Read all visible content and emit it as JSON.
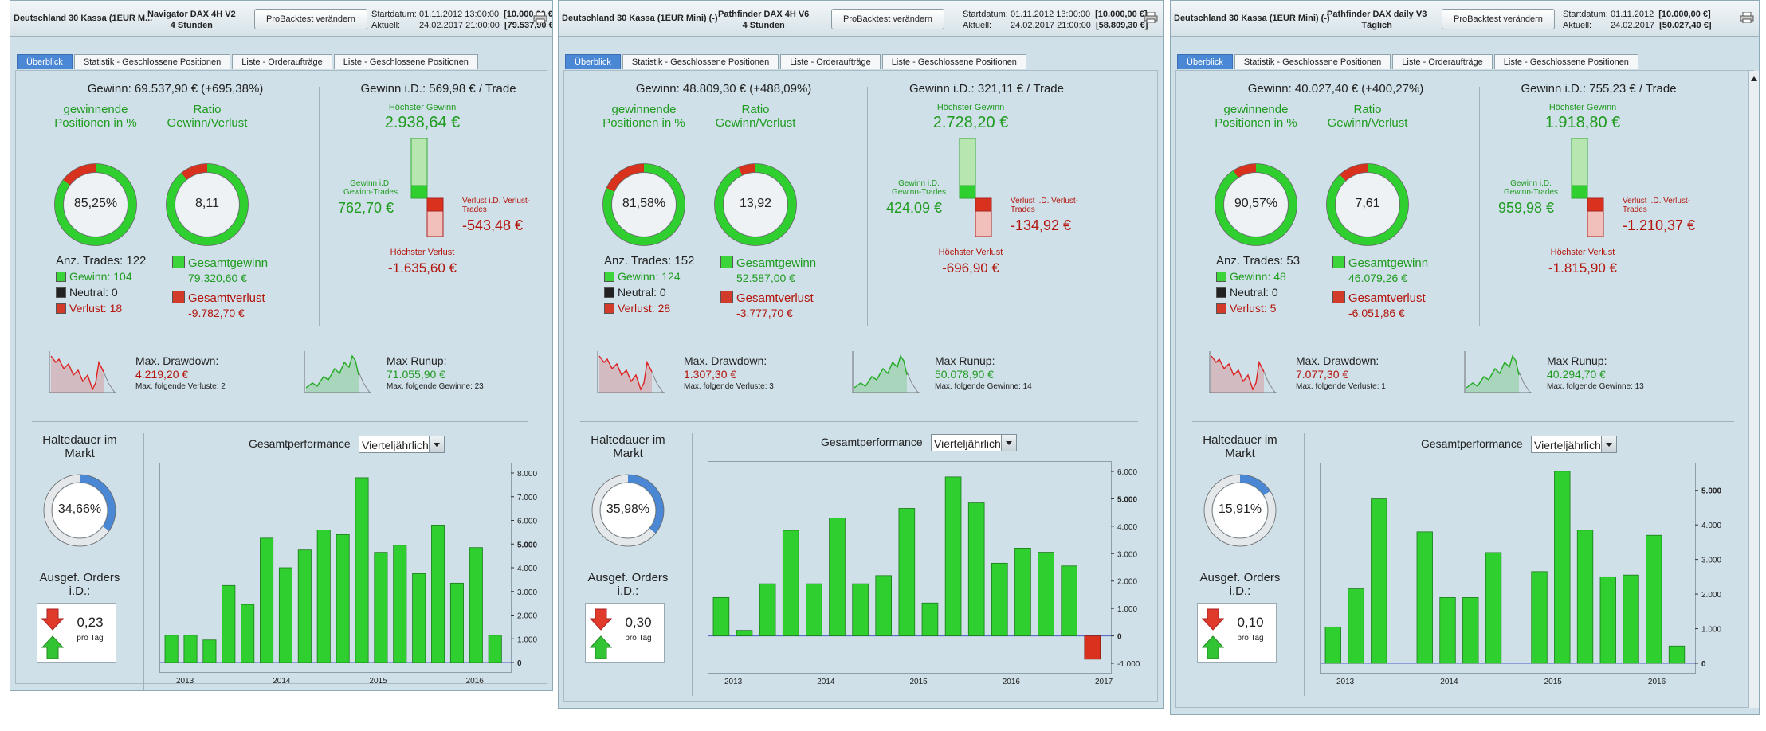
{
  "panels": [
    {
      "instrument": "Deutschland 30 Kassa (1EUR M...",
      "system": [
        "Navigator DAX 4H V2",
        "4 Stunden"
      ],
      "button": "ProBacktest verändern",
      "start_label": "Startdatum:",
      "start_value": "01.11.2012 13:00:00",
      "start_bracket": "[10.000,00 €]",
      "now_label": "Aktuell:",
      "now_value": "24.02.2017 21:00:00",
      "now_bracket": "[79.537,90 €]",
      "tabs": [
        "Überblick",
        "Statistik - Geschlossene Positionen",
        "Liste - Orderaufträge",
        "Liste - Geschlossene Positionen"
      ],
      "gewinn": "Gewinn: 69.537,90 € (+695,38%)",
      "win_pct_label": "gewinnende Positionen in %",
      "win_pct": "85,25%",
      "win_frac": 0.8525,
      "ratio_label": "Ratio Gewinn/Verlust",
      "ratio": "8,11",
      "ratio_frac": 0.89,
      "trades": "Anz. Trades: 122",
      "wins": "Gewinn: 104",
      "neutral": "Neutral: 0",
      "losses": "Verlust: 18",
      "total_gain_label": "Gesamtgewinn",
      "total_gain": "79.320,60 €",
      "total_loss_label": "Gesamtverlust",
      "total_loss": "-9.782,70 €",
      "gewinn_id": "Gewinn i.D.: 569,98 € / Trade",
      "max_gain_label": "Höchster Gewinn",
      "max_gain": "2.938,64 €",
      "avg_win_label": "Gewinn i.D. Gewinn-Trades",
      "avg_win": "762,70 €",
      "avg_loss_label": "Verlust i.D. Verlust-Trades",
      "avg_loss": "-543,48 €",
      "max_loss_label": "Höchster Verlust",
      "max_loss": "-1.635,60 €",
      "dd_label": "Max. Drawdown:",
      "dd": "4.219,20 €",
      "dd_sub": "Max. folgende Verluste: 2",
      "ru_label": "Max Runup:",
      "ru": "71.055,90 €",
      "ru_sub": "Max. folgende Gewinne: 23",
      "hold_label": "Haltedauer im Markt",
      "hold": "34,66%",
      "hold_frac": 0.3466,
      "perf_label": "Gesamtperformance",
      "perf_select": "Vierteljährlich",
      "orders_label": "Ausgef. Orders i.D.:",
      "orders": "0,23",
      "orders_unit": "pro Tag"
    },
    {
      "instrument": "Deutschland 30 Kassa (1EUR Mini) (-)",
      "system": [
        "Pathfinder DAX 4H V6",
        "4 Stunden"
      ],
      "button": "ProBacktest verändern",
      "start_label": "Startdatum:",
      "start_value": "01.11.2012 13:00:00",
      "start_bracket": "[10.000,00 €]",
      "now_label": "Aktuell:",
      "now_value": "24.02.2017 21:00:00",
      "now_bracket": "[58.809,30 €]",
      "tabs": [
        "Überblick",
        "Statistik - Geschlossene Positionen",
        "Liste - Orderaufträge",
        "Liste - Geschlossene Positionen"
      ],
      "gewinn": "Gewinn: 48.809,30 € (+488,09%)",
      "win_pct_label": "gewinnende Positionen in %",
      "win_pct": "81,58%",
      "win_frac": 0.8158,
      "ratio_label": "Ratio Gewinn/Verlust",
      "ratio": "13,92",
      "ratio_frac": 0.93,
      "trades": "Anz. Trades: 152",
      "wins": "Gewinn: 124",
      "neutral": "Neutral: 0",
      "losses": "Verlust: 28",
      "total_gain_label": "Gesamtgewinn",
      "total_gain": "52.587,00 €",
      "total_loss_label": "Gesamtverlust",
      "total_loss": "-3.777,70 €",
      "gewinn_id": "Gewinn i.D.: 321,11 € / Trade",
      "max_gain_label": "Höchster Gewinn",
      "max_gain": "2.728,20 €",
      "avg_win_label": "Gewinn i.D. Gewinn-Trades",
      "avg_win": "424,09 €",
      "avg_loss_label": "Verlust i.D. Verlust-Trades",
      "avg_loss": "-134,92 €",
      "max_loss_label": "Höchster Verlust",
      "max_loss": "-696,90 €",
      "dd_label": "Max. Drawdown:",
      "dd": "1.307,30 €",
      "dd_sub": "Max. folgende Verluste: 3",
      "ru_label": "Max Runup:",
      "ru": "50.078,90 €",
      "ru_sub": "Max. folgende Gewinne: 14",
      "hold_label": "Haltedauer im Markt",
      "hold": "35,98%",
      "hold_frac": 0.3598,
      "perf_label": "Gesamtperformance",
      "perf_select": "Vierteljährlich",
      "orders_label": "Ausgef. Orders i.D.:",
      "orders": "0,30",
      "orders_unit": "pro Tag"
    },
    {
      "instrument": "Deutschland 30 Kassa (1EUR Mini) (-)",
      "system": [
        "Pathfinder DAX daily V3",
        "Täglich"
      ],
      "button": "ProBacktest verändern",
      "start_label": "Startdatum:",
      "start_value": "01.11.2012",
      "start_bracket": "[10.000,00 €]",
      "now_label": "Aktuell:",
      "now_value": "24.02.2017",
      "now_bracket": "[50.027,40 €]",
      "tabs": [
        "Überblick",
        "Statistik - Geschlossene Positionen",
        "Liste - Orderaufträge",
        "Liste - Geschlossene Positionen"
      ],
      "gewinn": "Gewinn: 40.027,40 € (+400,27%)",
      "win_pct_label": "gewinnende Positionen in %",
      "win_pct": "90,57%",
      "win_frac": 0.9057,
      "ratio_label": "Ratio Gewinn/Verlust",
      "ratio": "7,61",
      "ratio_frac": 0.88,
      "trades": "Anz. Trades: 53",
      "wins": "Gewinn: 48",
      "neutral": "Neutral: 0",
      "losses": "Verlust: 5",
      "total_gain_label": "Gesamtgewinn",
      "total_gain": "46.079,26 €",
      "total_loss_label": "Gesamtverlust",
      "total_loss": "-6.051,86 €",
      "gewinn_id": "Gewinn i.D.: 755,23 € / Trade",
      "max_gain_label": "Höchster Gewinn",
      "max_gain": "1.918,80 €",
      "avg_win_label": "Gewinn i.D. Gewinn-Trades",
      "avg_win": "959,98 €",
      "avg_loss_label": "Verlust i.D. Verlust-Trades",
      "avg_loss": "-1.210,37 €",
      "max_loss_label": "Höchster Verlust",
      "max_loss": "-1.815,90 €",
      "dd_label": "Max. Drawdown:",
      "dd": "7.077,30 €",
      "dd_sub": "Max. folgende Verluste: 1",
      "ru_label": "Max Runup:",
      "ru": "40.294,70 €",
      "ru_sub": "Max. folgende Gewinne: 13",
      "hold_label": "Haltedauer im Markt",
      "hold": "15,91%",
      "hold_frac": 0.1591,
      "perf_label": "Gesamtperformance",
      "perf_select": "Vierteljährlich",
      "orders_label": "Ausgef. Orders i.D.:",
      "orders": "0,10",
      "orders_unit": "pro Tag"
    }
  ],
  "colors": {
    "panel_bg": "#cfe0e8",
    "win_green": "#1f9b1f",
    "bar_green": "#2fcf2f",
    "loss_red": "#b3140c",
    "active_tab": "#4a87d4",
    "hold_blue": "#4a87d4"
  },
  "chart_data": [
    {
      "type": "bar",
      "title": "Gesamtperformance",
      "x_ticks": [
        "2013",
        "2014",
        "2015",
        "2016"
      ],
      "y_ticks": [
        "8.000",
        "7.000",
        "6.000",
        "5.000",
        "4.000",
        "3.000",
        "2.000",
        "1.000",
        "0"
      ],
      "ylim": [
        0,
        8000
      ],
      "values": [
        1150,
        1150,
        950,
        3250,
        2450,
        5250,
        4000,
        4750,
        5600,
        5400,
        7800,
        4650,
        4950,
        3750,
        5800,
        3350,
        4850,
        1150
      ]
    },
    {
      "type": "bar",
      "title": "Gesamtperformance",
      "x_ticks": [
        "2013",
        "2014",
        "2015",
        "2016",
        "2017"
      ],
      "y_ticks": [
        "6.000",
        "5.000",
        "4.000",
        "3.000",
        "2.000",
        "1.000",
        "0",
        "-1.000"
      ],
      "ylim": [
        -1000,
        6000
      ],
      "values": [
        1400,
        200,
        1900,
        3850,
        1900,
        4300,
        1900,
        2200,
        4650,
        1200,
        5800,
        4850,
        2650,
        3200,
        3050,
        2550,
        -850
      ]
    },
    {
      "type": "bar",
      "title": "Gesamtperformance",
      "x_ticks": [
        "2013",
        "2014",
        "2015",
        "2016"
      ],
      "y_ticks": [
        "5.000",
        "4.000",
        "3.000",
        "2.000",
        "1.000",
        "0"
      ],
      "ylim": [
        0,
        5500
      ],
      "values": [
        1050,
        2150,
        4750,
        0,
        3800,
        1900,
        1900,
        3200,
        0,
        2650,
        5550,
        3850,
        2500,
        2550,
        3700,
        500
      ]
    }
  ]
}
